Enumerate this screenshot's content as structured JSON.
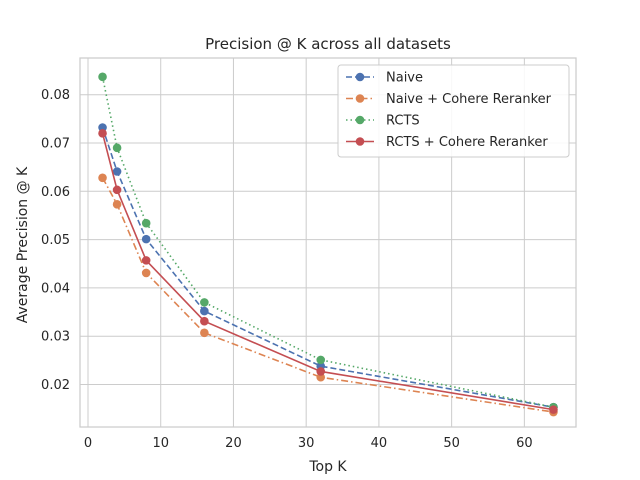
{
  "chart_data": {
    "type": "line",
    "title": "Precision @ K across all datasets",
    "xlabel": "Top K",
    "ylabel": "Average Precision @ K",
    "xlim": [
      -1.1,
      67.1
    ],
    "ylim": [
      0.0112,
      0.0876
    ],
    "xticks": [
      0,
      10,
      20,
      30,
      40,
      50,
      60
    ],
    "yticks": [
      0.02,
      0.03,
      0.04,
      0.05,
      0.06,
      0.07,
      0.08
    ],
    "grid": true,
    "legend_position": "top-right",
    "x": [
      2,
      4,
      8,
      16,
      32,
      64
    ],
    "series": [
      {
        "name": "Naive",
        "color": "#4c72b0",
        "dash": "dashed",
        "values": [
          0.0732,
          0.0641,
          0.0501,
          0.0352,
          0.0238,
          0.0153
        ]
      },
      {
        "name": "Naive + Cohere Reranker",
        "color": "#dd8452",
        "dash": "dashdot",
        "values": [
          0.0628,
          0.0573,
          0.0431,
          0.0307,
          0.0215,
          0.0143
        ]
      },
      {
        "name": "RCTS",
        "color": "#55a868",
        "dash": "dotted",
        "values": [
          0.0837,
          0.069,
          0.0534,
          0.037,
          0.0251,
          0.0153
        ]
      },
      {
        "name": "RCTS + Cohere Reranker",
        "color": "#c44e52",
        "dash": "solid",
        "values": [
          0.072,
          0.0603,
          0.0457,
          0.0331,
          0.0227,
          0.0148
        ]
      }
    ]
  }
}
